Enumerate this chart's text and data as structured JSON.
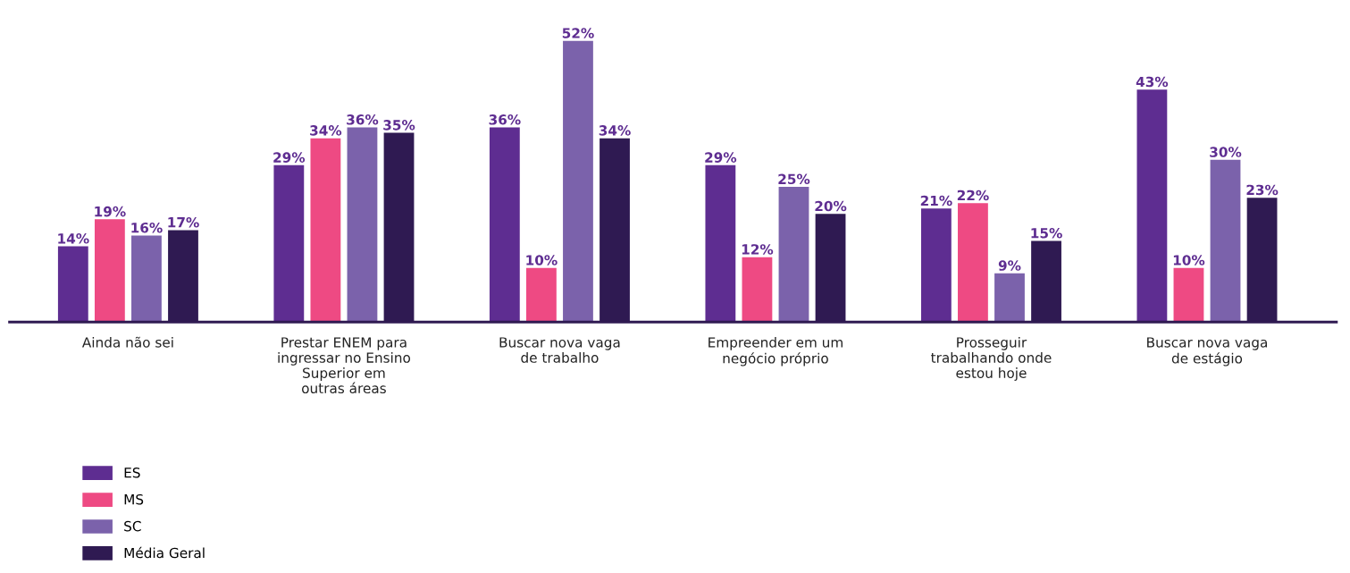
{
  "chart_data": {
    "type": "bar",
    "categories": [
      "Ainda não sei",
      "Prestar ENEM para\ningressar no Ensino\nSuperior em\noutras áreas",
      "Buscar nova vaga\nde trabalho",
      "Empreender em um\nnegócio próprio",
      "Prosseguir\ntrabalhando onde\nestou hoje",
      "Buscar nova vaga\nde estágio"
    ],
    "series": [
      {
        "name": "ES",
        "color": "#5e2d91",
        "values": [
          14,
          29,
          36,
          29,
          21,
          43
        ],
        "value_labels": [
          "14%",
          "29%",
          "36%",
          "29%",
          "21%",
          "43%"
        ]
      },
      {
        "name": "MS",
        "color": "#ee4a83",
        "values": [
          19,
          34,
          10,
          12,
          22,
          10
        ],
        "value_labels": [
          "19%",
          "34%",
          "10%",
          "12%",
          "22%",
          "10%"
        ]
      },
      {
        "name": "SC",
        "color": "#7b62ab",
        "values": [
          16,
          36,
          52,
          25,
          9,
          30
        ],
        "value_labels": [
          "16%",
          "36%",
          "52%",
          "25%",
          "9%",
          "30%"
        ]
      },
      {
        "name": "Média Geral",
        "color": "#2f1a52",
        "values": [
          17,
          35,
          34,
          20,
          15,
          23
        ],
        "value_labels": [
          "17%",
          "35%",
          "34%",
          "20%",
          "15%",
          "23%"
        ]
      }
    ],
    "legend": "bottom left",
    "grid": false
  }
}
